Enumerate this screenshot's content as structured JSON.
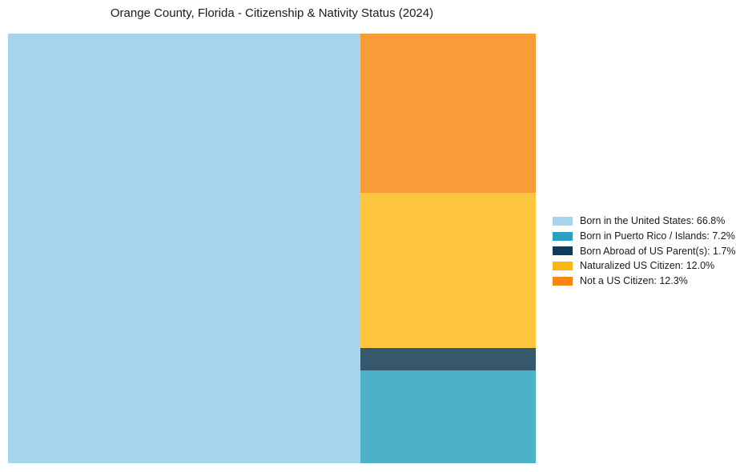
{
  "chart_data": {
    "type": "treemap",
    "title": "Orange County, Florida - Citizenship & Nativity Status (2024)",
    "background": "#FFFFFF",
    "legend_position": "right",
    "main_block": "born_us",
    "stack_order_top_to_bottom": [
      "not_citizen",
      "naturalized",
      "born_abroad",
      "puerto_rico"
    ],
    "items": [
      {
        "key": "born_us",
        "name": "Born in the United States",
        "value": 66.8,
        "pct_label": "66.8%",
        "block_color": "#A5D4EB",
        "legend_color": "#A5D4EB"
      },
      {
        "key": "puerto_rico",
        "name": "Born in Puerto Rico / Islands",
        "value": 7.2,
        "pct_label": "7.2%",
        "block_color": "#4DB1C7",
        "legend_color": "#2BA0C2"
      },
      {
        "key": "born_abroad",
        "name": "Born Abroad of US Parent(s)",
        "value": 1.7,
        "pct_label": "1.7%",
        "block_color": "#35586C",
        "legend_color": "#0E3B5C"
      },
      {
        "key": "naturalized",
        "name": "Naturalized US Citizen",
        "value": 12.0,
        "pct_label": "12.0%",
        "block_color": "#FEC63F",
        "legend_color": "#FCB614"
      },
      {
        "key": "not_citizen",
        "name": "Not a US Citizen",
        "value": 12.3,
        "pct_label": "12.3%",
        "block_color": "#F99C38",
        "legend_color": "#F78613"
      }
    ]
  }
}
